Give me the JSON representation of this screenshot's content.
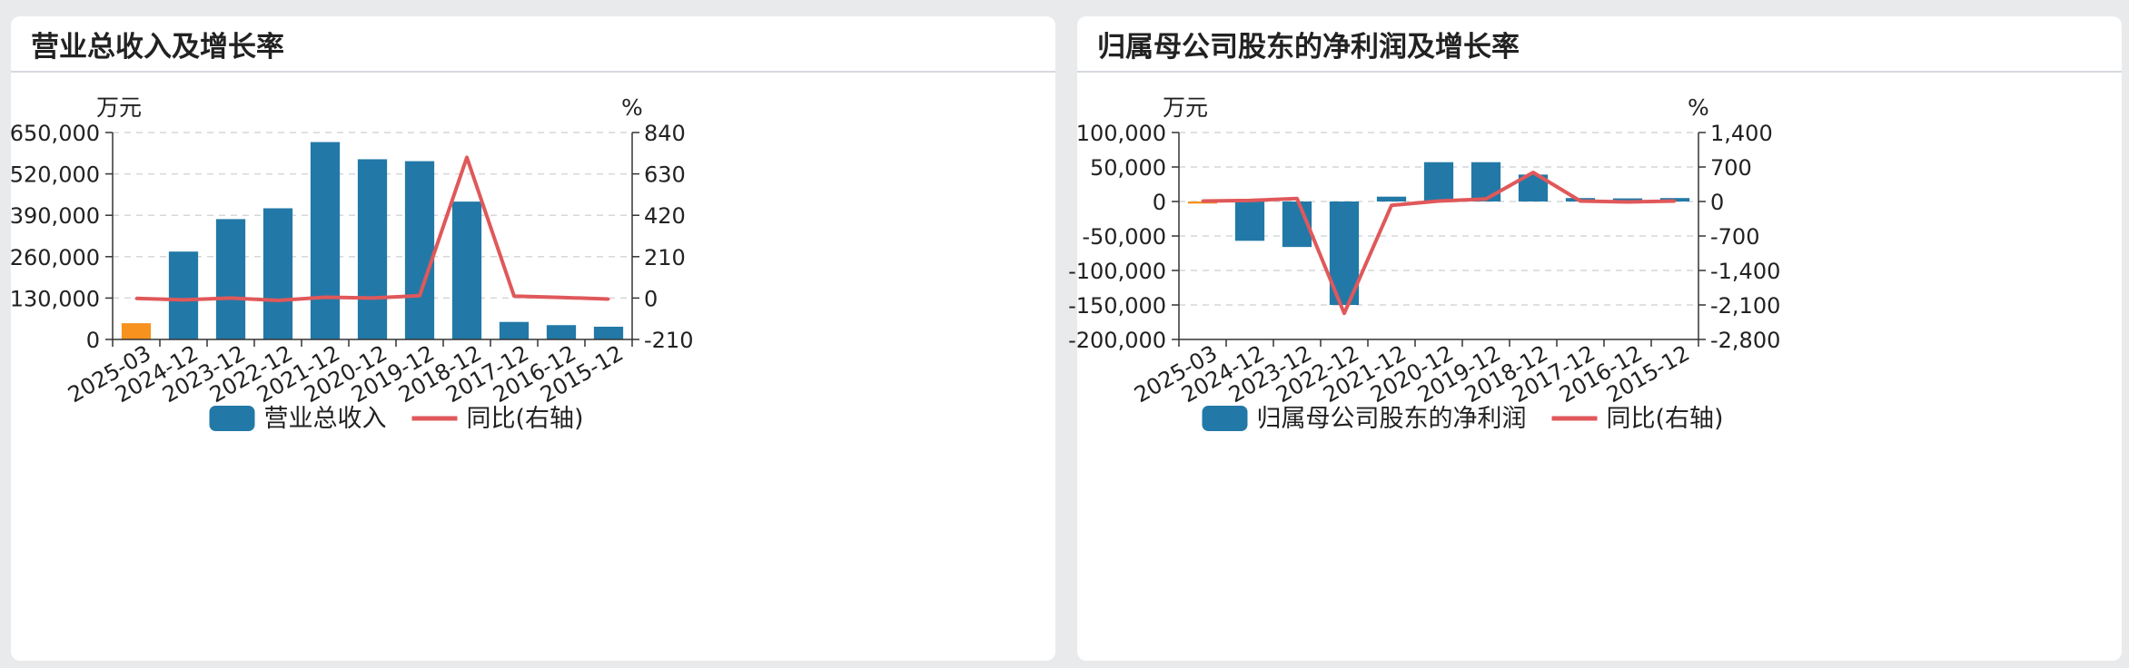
{
  "panels": [
    {
      "title": "营业总收入及增长率",
      "chart_data": {
        "type": "bar",
        "categories": [
          "2025-03",
          "2024-12",
          "2023-12",
          "2022-12",
          "2021-12",
          "2020-12",
          "2019-12",
          "2018-12",
          "2017-12",
          "2016-12",
          "2015-12"
        ],
        "series": [
          {
            "name": "营业总收入",
            "type": "bar",
            "axis": "left",
            "values": [
              51000,
              276000,
              378000,
              412000,
              620000,
              566000,
              560000,
              433000,
              55000,
              45000,
              40000
            ]
          },
          {
            "name": "同比(右轴)",
            "type": "line",
            "axis": "right",
            "values": [
              -2,
              -9,
              0,
              -12,
              4,
              0,
              12,
              714,
              10,
              3,
              -5
            ]
          }
        ],
        "left_unit": "万元",
        "right_unit": "%",
        "left_ticks": [
          "650,000",
          "520,000",
          "390,000",
          "260,000",
          "130,000",
          "0"
        ],
        "right_ticks": [
          "840",
          "630",
          "420",
          "210",
          "0",
          "-210"
        ],
        "ylim_left": [
          0,
          650000
        ],
        "ylim_right": [
          -210,
          840
        ],
        "highlight_first_bar": true,
        "grid": true,
        "legend": "bottom",
        "colors": {
          "bar": "#2279a7",
          "highlight": "#f7921e",
          "line": "#e0585a"
        }
      }
    },
    {
      "title": "归属母公司股东的净利润及增长率",
      "chart_data": {
        "type": "bar",
        "categories": [
          "2025-03",
          "2024-12",
          "2023-12",
          "2022-12",
          "2021-12",
          "2020-12",
          "2019-12",
          "2018-12",
          "2017-12",
          "2016-12",
          "2015-12"
        ],
        "series": [
          {
            "name": "归属母公司股东的净利润",
            "type": "bar",
            "axis": "left",
            "values": [
              -3000,
              -57000,
              -66000,
              -150000,
              7000,
              57000,
              57000,
              39000,
              5000,
              4500,
              5000
            ]
          },
          {
            "name": "同比(右轴)",
            "type": "line",
            "axis": "right",
            "values": [
              10,
              20,
              60,
              -2270,
              -80,
              10,
              50,
              590,
              10,
              -10,
              10
            ]
          }
        ],
        "left_unit": "万元",
        "right_unit": "%",
        "left_ticks": [
          "100,000",
          "50,000",
          "0",
          "-50,000",
          "-100,000",
          "-150,000",
          "-200,000"
        ],
        "right_ticks": [
          "1,400",
          "700",
          "0",
          "-700",
          "-1,400",
          "-2,100",
          "-2,800"
        ],
        "ylim_left": [
          -200000,
          100000
        ],
        "ylim_right": [
          -2800,
          1400
        ],
        "highlight_first_bar": true,
        "grid": true,
        "legend": "bottom",
        "colors": {
          "bar": "#2279a7",
          "highlight": "#f7921e",
          "line": "#e0585a"
        }
      }
    }
  ]
}
